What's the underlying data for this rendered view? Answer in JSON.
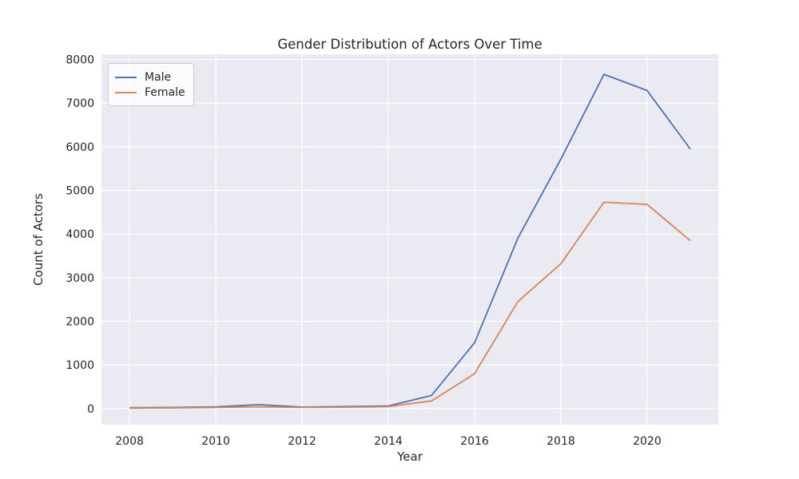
{
  "chart_data": {
    "type": "line",
    "title": "Gender Distribution of Actors Over Time",
    "xlabel": "Year",
    "ylabel": "Count of Actors",
    "x": [
      2008,
      2009,
      2010,
      2011,
      2012,
      2013,
      2014,
      2015,
      2016,
      2017,
      2018,
      2019,
      2020,
      2021
    ],
    "series": [
      {
        "name": "Male",
        "color": "#4C72B0",
        "values": [
          20,
          25,
          40,
          90,
          35,
          45,
          60,
          300,
          1510,
          3900,
          5720,
          7660,
          7290,
          5950
        ]
      },
      {
        "name": "Female",
        "color": "#DD8452",
        "values": [
          10,
          15,
          25,
          40,
          25,
          30,
          45,
          175,
          800,
          2450,
          3320,
          4730,
          4680,
          3850
        ]
      }
    ],
    "xticks": [
      2008,
      2010,
      2012,
      2014,
      2016,
      2018,
      2020
    ],
    "yticks": [
      0,
      1000,
      2000,
      3000,
      4000,
      5000,
      6000,
      7000,
      8000
    ],
    "xlim": [
      2007.35,
      2021.65
    ],
    "ylim": [
      -370,
      8120
    ],
    "grid": true,
    "legend_position": "upper left",
    "plot_bg_color": "#EAEAF2",
    "grid_color": "#FFFFFF",
    "text_color": "#262626"
  }
}
